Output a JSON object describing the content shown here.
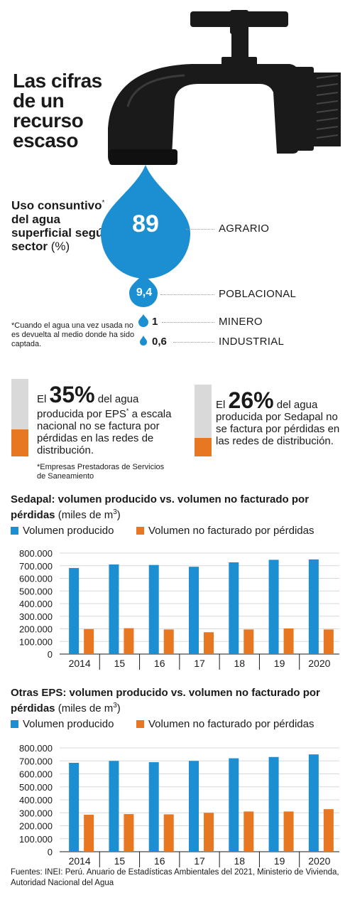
{
  "title": "Las cifras de un recurso escaso",
  "uso": {
    "label_bold": "Uso consuntivo",
    "label_star": "*",
    "label_bold2": "del agua superficial según sector",
    "label_unit": "(%)",
    "note": "*Cuando el agua una vez usada no es devuelta al medio donde ha sido captada.",
    "sectors": [
      {
        "name": "AGRARIO",
        "value": "89"
      },
      {
        "name": "POBLACIONAL",
        "value": "9,4"
      },
      {
        "name": "MINERO",
        "value": "1"
      },
      {
        "name": "INDUSTRIAL",
        "value": "0,6"
      }
    ]
  },
  "colors": {
    "blue": "#1b8fd2",
    "orange": "#e87722",
    "gray": "#d9d9d9",
    "black": "#1a1a1a"
  },
  "pct1": {
    "value": 35,
    "pre": "El ",
    "big": "35%",
    "post": " del agua producida por EPS",
    "star": "*",
    "rest": " a escala nacional no se factura por pérdidas en las redes de distribución.",
    "note": "*Empresas Prestadoras de Servicios de Saneamiento"
  },
  "pct2": {
    "value": 26,
    "pre": "El ",
    "big": "26%",
    "post": " del agua producida por Sedapal no se factura por pérdidas en las redes de distribución."
  },
  "chart_data": [
    {
      "type": "bar",
      "title": "Sedapal: volumen producido vs. volumen no facturado por pérdidas",
      "unit": "(miles de m",
      "unit_sup": "3",
      "unit_close": ")",
      "categories": [
        "2014",
        "15",
        "16",
        "17",
        "18",
        "19",
        "2020"
      ],
      "series": [
        {
          "name": "Volumen producido",
          "values": [
            682000,
            710000,
            706000,
            692000,
            727000,
            747000,
            750000
          ]
        },
        {
          "name": "Volumen no facturado por pérdidas",
          "values": [
            198000,
            205000,
            195000,
            173000,
            195000,
            203000,
            195000
          ]
        }
      ],
      "ylim": [
        0,
        800000
      ],
      "yticks": [
        "0",
        "100.000",
        "200.000",
        "300.000",
        "400.000",
        "500.000",
        "600.000",
        "700.000",
        "800.000"
      ],
      "grid": true,
      "legend": "top"
    },
    {
      "type": "bar",
      "title": "Otras EPS: volumen producido vs. volumen no facturado por pérdidas",
      "unit": "(miles de m",
      "unit_sup": "3",
      "unit_close": ")",
      "categories": [
        "2014",
        "15",
        "16",
        "17",
        "18",
        "19",
        "2020"
      ],
      "series": [
        {
          "name": "Volumen producido",
          "values": [
            685000,
            700000,
            690000,
            700000,
            720000,
            730000,
            750000
          ]
        },
        {
          "name": "Volumen no facturado por pérdidas",
          "values": [
            285000,
            290000,
            288000,
            300000,
            310000,
            310000,
            328000
          ]
        }
      ],
      "ylim": [
        0,
        800000
      ],
      "yticks": [
        "0",
        "100.000",
        "200.000",
        "300.000",
        "400.000",
        "500.000",
        "600.000",
        "700.000",
        "800.000"
      ],
      "grid": true,
      "legend": "top"
    }
  ],
  "sources": "Fuentes: INEI: Perú. Anuario de Estadísticas Ambientales del 2021, Ministerio de Vivienda, Autoridad Nacional del Agua"
}
